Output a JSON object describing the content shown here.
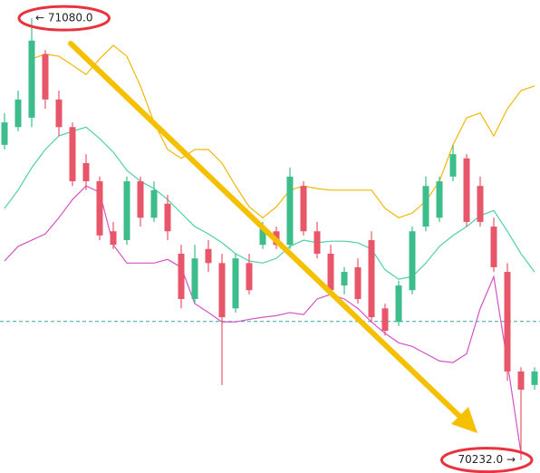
{
  "chart_data": {
    "type": "candlestick",
    "ylim": [
      70207,
      71115
    ],
    "up_color": "#3dbd8c",
    "down_color": "#e8566a",
    "open": [
      70837,
      70871,
      70889,
      71011,
      70924,
      70871,
      70802,
      70767,
      70671,
      70654,
      70767,
      70697,
      70724,
      70628,
      70541,
      70637,
      70610,
      70523,
      70610,
      70645,
      70671,
      70645,
      70758,
      70671,
      70628,
      70567,
      70602,
      70654,
      70523,
      70497,
      70558,
      70680,
      70697,
      70776,
      70811,
      70758,
      70680,
      70593,
      70402,
      70376
    ],
    "close": [
      70880,
      70924,
      71037,
      70924,
      70871,
      70767,
      70767,
      70663,
      70645,
      70767,
      70697,
      70750,
      70671,
      70541,
      70619,
      70610,
      70506,
      70619,
      70558,
      70680,
      70645,
      70776,
      70671,
      70628,
      70558,
      70593,
      70541,
      70506,
      70480,
      70567,
      70671,
      70758,
      70767,
      70819,
      70689,
      70689,
      70602,
      70402,
      70367,
      70402
    ],
    "high": [
      70898,
      70941,
      71080,
      71019,
      70941,
      70880,
      70819,
      70776,
      70689,
      70776,
      70776,
      70767,
      70741,
      70645,
      70645,
      70654,
      70628,
      70628,
      70628,
      70689,
      70680,
      70793,
      70767,
      70689,
      70645,
      70602,
      70619,
      70671,
      70532,
      70576,
      70680,
      70776,
      70776,
      70837,
      70819,
      70776,
      70697,
      70610,
      70410,
      70410
    ],
    "low": [
      70828,
      70863,
      70871,
      70906,
      70854,
      70758,
      70750,
      70654,
      70637,
      70645,
      70680,
      70689,
      70654,
      70523,
      70532,
      70593,
      70376,
      70515,
      70550,
      70637,
      70637,
      70637,
      70663,
      70619,
      70550,
      70550,
      70532,
      70497,
      70471,
      70489,
      70550,
      70671,
      70689,
      70767,
      70680,
      70680,
      70593,
      70384,
      70232,
      70367
    ],
    "series": [
      {
        "color": "#f2b705",
        "values": [
          null,
          null,
          71002,
          71011,
          71007,
          70990,
          70972,
          71002,
          71028,
          71007,
          70950,
          70880,
          70828,
          70811,
          70828,
          70828,
          70802,
          70758,
          70718,
          70697,
          70718,
          70750,
          70758,
          70753,
          70750,
          70750,
          70750,
          70750,
          70715,
          70697,
          70706,
          70729,
          70767,
          70837,
          70889,
          70898,
          70854,
          70906,
          70941,
          70950
        ]
      },
      {
        "color": "#4fd1a5",
        "values": [
          70715,
          70750,
          70793,
          70828,
          70854,
          70863,
          70871,
          70849,
          70823,
          70788,
          70767,
          70753,
          70732,
          70706,
          70680,
          70666,
          70649,
          70628,
          70614,
          70610,
          70619,
          70642,
          70654,
          70649,
          70652,
          70652,
          70649,
          70637,
          70597,
          70579,
          70584,
          70610,
          70642,
          70663,
          70680,
          70701,
          70711,
          70671,
          70628,
          70593
        ]
      },
      {
        "color": "#d454c0",
        "values": [
          70614,
          70642,
          70654,
          70666,
          70697,
          70732,
          70758,
          70746,
          70645,
          70610,
          70610,
          70610,
          70617,
          70602,
          70532,
          70515,
          70497,
          70497,
          70502,
          70506,
          70509,
          70515,
          70511,
          70541,
          70550,
          70541,
          70523,
          70497,
          70475,
          70457,
          70450,
          70436,
          70422,
          70419,
          70436,
          70523,
          70584,
          70419,
          70245,
          null
        ]
      }
    ],
    "ref_line": {
      "value": 70498,
      "color": "#3aa99f"
    },
    "annotations": [
      {
        "text": "← 71080.0",
        "value": 71080,
        "index": 2,
        "anchor": "start"
      },
      {
        "text": "70232.0 →",
        "value": 70232,
        "index": 38,
        "anchor": "end"
      }
    ]
  }
}
